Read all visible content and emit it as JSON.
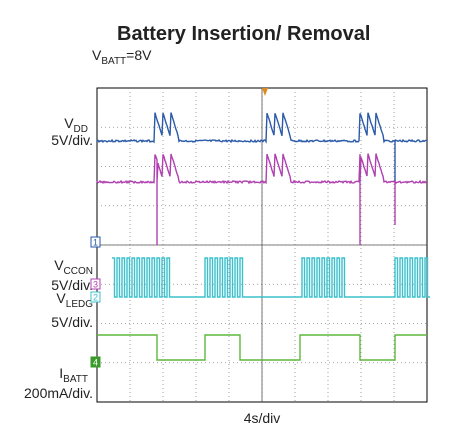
{
  "title": "Battery Insertion/ Removal",
  "subtitle": {
    "main": "V",
    "sub": "BATT",
    "rest": "=8V"
  },
  "channels": [
    {
      "name": {
        "main": "V",
        "sub": "DD"
      },
      "scale": "5V/div."
    },
    {
      "name": {
        "main": "V",
        "sub": "CCON"
      },
      "scale": "5V/div."
    },
    {
      "name": {
        "main": "V",
        "sub": "LEDG"
      },
      "scale": "5V/div."
    },
    {
      "name": {
        "main": "I",
        "sub": "BATT"
      },
      "scale": "200mA/div."
    }
  ],
  "markers": [
    "1",
    "3",
    "2",
    "4"
  ],
  "time_scale": "4s/div"
}
